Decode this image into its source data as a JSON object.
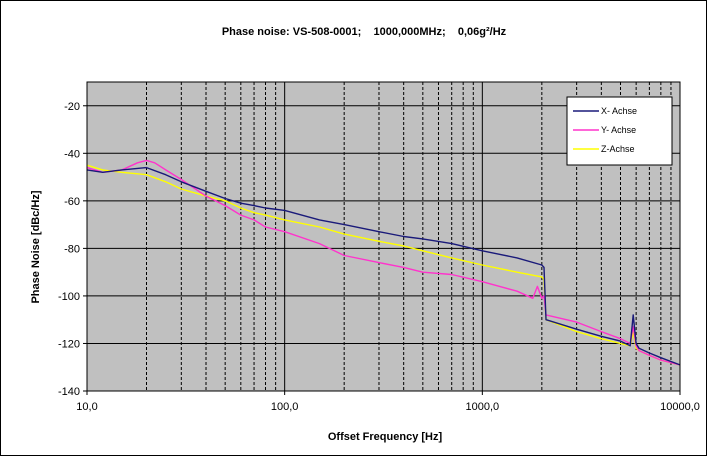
{
  "chart_data": {
    "type": "line",
    "title": "Phase noise: VS-508-0001;    1000,000MHz;    0,06g²/Hz",
    "xlabel": "Offset Frequency [Hz]",
    "ylabel": "Phase Noise [dBc/Hz]",
    "x_scale": "log",
    "xlim": [
      10,
      10000
    ],
    "ylim": [
      -140,
      -10
    ],
    "x_tick_labels": [
      "10,0",
      "100,0",
      "1000,0",
      "10000,0"
    ],
    "y_tick_labels": [
      "-20",
      "-40",
      "-60",
      "-80",
      "-100",
      "-120",
      "-140"
    ],
    "grid": true,
    "legend_position": "top-right",
    "background": "#c0c0c0",
    "series": [
      {
        "name": "X- Achse",
        "color": "#1a1a7a",
        "x": [
          10,
          12,
          15,
          20,
          25,
          30,
          40,
          50,
          60,
          70,
          80,
          100,
          150,
          200,
          300,
          400,
          500,
          700,
          1000,
          1500,
          2000,
          2050,
          2100,
          3000,
          4000,
          5000,
          5600,
          5800,
          6000,
          6200,
          7000,
          8000,
          10000
        ],
        "y": [
          -47,
          -48,
          -47,
          -46,
          -49,
          -52,
          -56,
          -59,
          -61,
          -62,
          -63,
          -64,
          -68,
          -70,
          -73,
          -75,
          -76,
          -78,
          -81,
          -84,
          -87,
          -88,
          -110,
          -114,
          -117,
          -119,
          -121,
          -108,
          -120,
          -122,
          -124,
          -126,
          -129
        ]
      },
      {
        "name": "Y- Achse",
        "color": "#ff33cc",
        "x": [
          10,
          12,
          15,
          18,
          20,
          22,
          25,
          30,
          40,
          50,
          60,
          70,
          80,
          100,
          150,
          200,
          300,
          400,
          500,
          700,
          1000,
          1500,
          1800,
          1900,
          2000,
          2050,
          2100,
          3000,
          4000,
          5000,
          5600,
          5800,
          6000,
          6200,
          7000,
          8000,
          10000
        ],
        "y": [
          -46,
          -48,
          -47,
          -44,
          -43,
          -44,
          -47,
          -51,
          -58,
          -62,
          -66,
          -68,
          -71,
          -73,
          -78,
          -83,
          -86,
          -88,
          -90,
          -91,
          -94,
          -98,
          -101,
          -96,
          -101,
          -100,
          -108,
          -111,
          -115,
          -118,
          -120,
          -113,
          -121,
          -123,
          -125,
          -127,
          -129
        ]
      },
      {
        "name": "Z-Achse",
        "color": "#ffff00",
        "x": [
          10,
          12,
          15,
          20,
          25,
          30,
          40,
          50,
          60,
          70,
          80,
          100,
          150,
          200,
          300,
          400,
          500,
          700,
          1000,
          1500,
          2000,
          2050,
          2100,
          3000,
          4000,
          5000,
          5600,
          5800,
          6000,
          6200,
          7000,
          8000,
          10000
        ],
        "y": [
          -45,
          -47,
          -48,
          -49,
          -52,
          -55,
          -58,
          -60,
          -63,
          -65,
          -66,
          -68,
          -71,
          -74,
          -77,
          -79,
          -81,
          -84,
          -87,
          -90,
          -92,
          -93,
          -110,
          -115,
          -118,
          -120,
          -121,
          -115,
          -122,
          -123,
          -125,
          -127,
          -129
        ]
      }
    ]
  }
}
